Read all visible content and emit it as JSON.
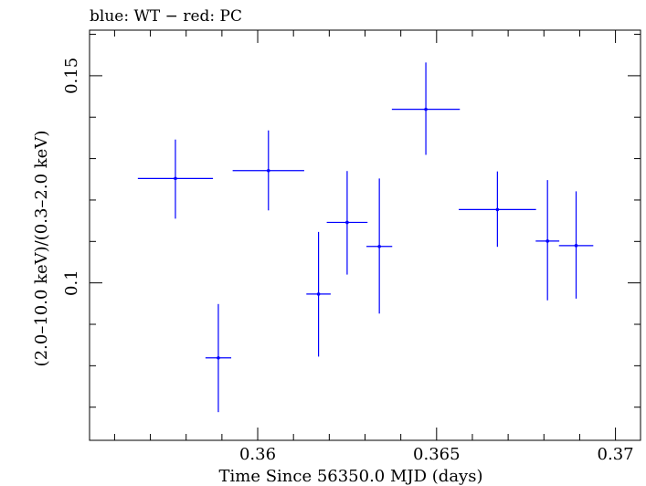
{
  "chart_data": {
    "type": "scatter",
    "title": "blue: WT − red: PC",
    "xlabel": "Time Since 56350.0 MJD (days)",
    "ylabel": "(2.0–10.0 keV)/(0.3–2.0 keV)",
    "xlim": [
      0.3553,
      0.3707
    ],
    "ylim": [
      0.062,
      0.161
    ],
    "x_major_ticks": [
      0.36,
      0.365,
      0.37
    ],
    "x_tick_labels": [
      "0.36",
      "0.365",
      "0.37"
    ],
    "y_major_ticks": [
      0.1,
      0.15
    ],
    "y_tick_labels": [
      "0.1",
      "0.15"
    ],
    "grid": false,
    "series": [
      {
        "color": "#0000ff",
        "points": [
          {
            "x": 0.3577,
            "xerr": 0.00105,
            "y": 0.1252,
            "yerr_lo": 0.0097,
            "yerr_hi": 0.0094
          },
          {
            "x": 0.3589,
            "xerr": 0.00036,
            "y": 0.0819,
            "yerr_lo": 0.0131,
            "yerr_hi": 0.013
          },
          {
            "x": 0.3603,
            "xerr": 0.001,
            "y": 0.1271,
            "yerr_lo": 0.0096,
            "yerr_hi": 0.0097
          },
          {
            "x": 0.3617,
            "xerr": 0.00034,
            "y": 0.0973,
            "yerr_lo": 0.0151,
            "yerr_hi": 0.015
          },
          {
            "x": 0.3625,
            "xerr": 0.00057,
            "y": 0.1146,
            "yerr_lo": 0.0126,
            "yerr_hi": 0.0124
          },
          {
            "x": 0.3634,
            "xerr": 0.00036,
            "y": 0.1088,
            "yerr_lo": 0.0162,
            "yerr_hi": 0.0164
          },
          {
            "x": 0.3647,
            "xerr": 0.00095,
            "y": 0.1419,
            "yerr_lo": 0.011,
            "yerr_hi": 0.0113
          },
          {
            "x": 0.3667,
            "xerr": 0.00108,
            "y": 0.1177,
            "yerr_lo": 0.009,
            "yerr_hi": 0.0092
          },
          {
            "x": 0.3681,
            "xerr": 0.00033,
            "y": 0.1101,
            "yerr_lo": 0.0143,
            "yerr_hi": 0.0147
          },
          {
            "x": 0.3689,
            "xerr": 0.00048,
            "y": 0.109,
            "yerr_lo": 0.0128,
            "yerr_hi": 0.0131
          }
        ]
      }
    ]
  }
}
